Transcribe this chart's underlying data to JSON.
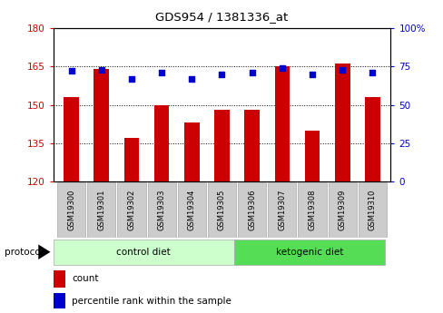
{
  "title": "GDS954 / 1381336_at",
  "samples": [
    "GSM19300",
    "GSM19301",
    "GSM19302",
    "GSM19303",
    "GSM19304",
    "GSM19305",
    "GSM19306",
    "GSM19307",
    "GSM19308",
    "GSM19309",
    "GSM19310"
  ],
  "count_values": [
    153,
    164,
    137,
    150,
    143,
    148,
    148,
    165,
    140,
    166,
    153
  ],
  "percentile_values": [
    72,
    73,
    67,
    71,
    67,
    70,
    71,
    74,
    70,
    73,
    71
  ],
  "ylim_left": [
    120,
    180
  ],
  "ylim_right": [
    0,
    100
  ],
  "yticks_left": [
    120,
    135,
    150,
    165,
    180
  ],
  "yticks_right": [
    0,
    25,
    50,
    75,
    100
  ],
  "bar_color": "#cc0000",
  "dot_color": "#0000cc",
  "n_control": 6,
  "n_ketogenic": 5,
  "control_label": "control diet",
  "ketogenic_label": "ketogenic diet",
  "protocol_label": "protocol",
  "legend_count": "count",
  "legend_percentile": "percentile rank within the sample",
  "bg_color": "#ffffff",
  "tick_label_color_left": "#cc0000",
  "tick_label_color_right": "#0000cc",
  "bar_width": 0.5,
  "dot_size": 18,
  "control_bg": "#ccffcc",
  "ketogenic_bg": "#55dd55",
  "sample_bg": "#cccccc"
}
